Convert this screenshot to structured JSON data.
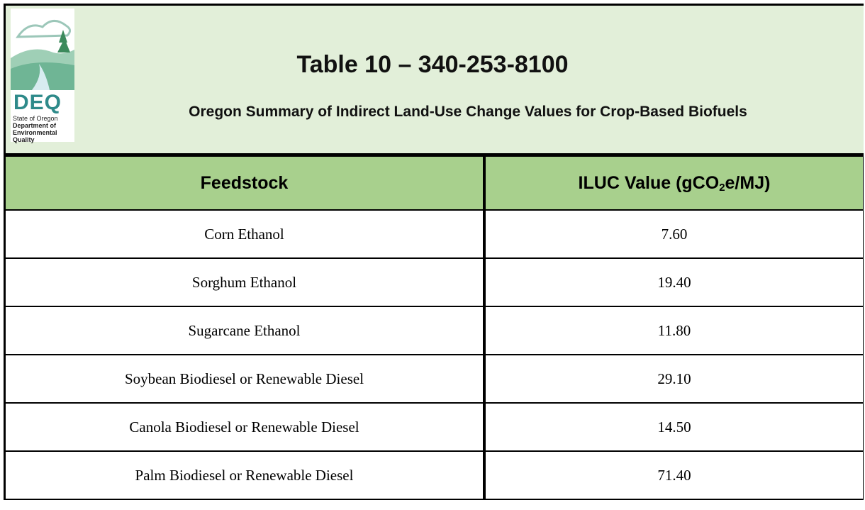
{
  "logo": {
    "acronym": "DEQ",
    "lines": [
      "State of Oregon",
      "Department of",
      "Environmental",
      "Quality"
    ]
  },
  "header": {
    "title": "Table 10 – 340-253-8100",
    "subtitle": "Oregon Summary of Indirect Land-Use Change Values for Crop-Based Biofuels"
  },
  "table": {
    "columns": [
      "Feedstock",
      [
        "ILUC Value (gCO",
        "2",
        "e/MJ)"
      ]
    ],
    "rows": [
      [
        "Corn Ethanol",
        "7.60"
      ],
      [
        "Sorghum Ethanol",
        "19.40"
      ],
      [
        "Sugarcane Ethanol",
        "11.80"
      ],
      [
        "Soybean Biodiesel or Renewable Diesel",
        "29.10"
      ],
      [
        "Canola Biodiesel or Renewable Diesel",
        "14.50"
      ],
      [
        "Palm Biodiesel or Renewable Diesel",
        "71.40"
      ]
    ]
  }
}
